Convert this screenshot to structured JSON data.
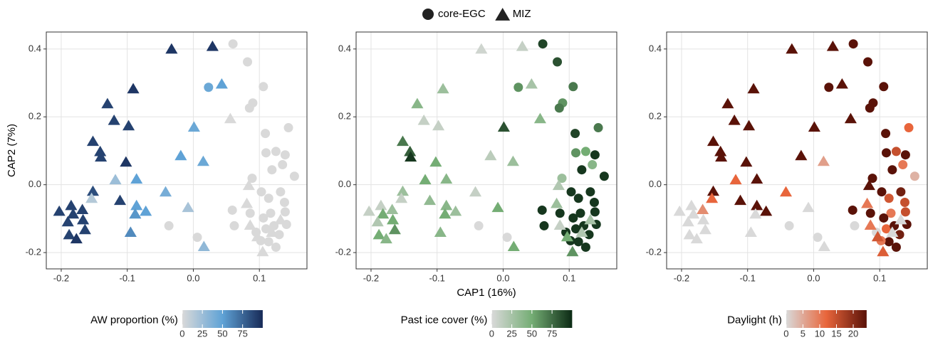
{
  "legend": {
    "note_series_from": 0
  },
  "chart_data": [
    {
      "type": "scatter",
      "y_label": "CAP2 (7%)",
      "xlim": [
        -0.2226,
        0.172
      ],
      "ylim": [
        -0.248,
        0.45
      ],
      "xticks": [
        -0.2,
        -0.1,
        {
          "value": 0,
          "label": "0.0"
        },
        0.1
      ],
      "yticks": [
        -0.2,
        {
          "value": 0,
          "label": "0.0"
        },
        0.2,
        0.4
      ],
      "grid": true,
      "colorbar": {
        "title": "AW proportion (%)",
        "lim": [
          0,
          100
        ],
        "ticks": [
          0,
          25,
          50,
          75
        ],
        "colors": [
          "#d9d9d9",
          "#5fa2d6",
          "#172a57"
        ]
      },
      "series": [
        {
          "name": "core-EGC",
          "marker": "circle",
          "x": [
            0.023,
            0.06,
            0.082,
            0.106,
            0.09,
            0.085,
            0.144,
            0.109,
            0.125,
            0.139,
            0.11,
            0.119,
            0.135,
            0.153,
            0.089,
            0.103,
            0.132,
            0.114,
            0.138,
            0.059,
            0.086,
            0.139,
            0.117,
            0.106,
            0.141,
            0.062,
            0.11,
            0.095,
            0.122,
            0.13,
            0.114,
            0.125,
            0.102,
            -0.037,
            0.006
          ],
          "y": [
            0.287,
            0.415,
            0.362,
            0.289,
            0.241,
            0.226,
            0.168,
            0.151,
            0.098,
            0.088,
            0.094,
            0.044,
            0.059,
            0.025,
            0.019,
            -0.021,
            -0.021,
            -0.04,
            -0.052,
            -0.075,
            -0.084,
            -0.08,
            -0.084,
            -0.098,
            -0.117,
            -0.121,
            -0.13,
            -0.14,
            -0.121,
            -0.147,
            -0.168,
            -0.184,
            -0.165,
            -0.121,
            -0.155
          ],
          "color_values": [
            45,
            0,
            0,
            0,
            0,
            0,
            0,
            0,
            0,
            0,
            0,
            0,
            0,
            0,
            0,
            0,
            0,
            0,
            0,
            0,
            0,
            0,
            0,
            0,
            0,
            0,
            0,
            0,
            0,
            0,
            0,
            0,
            0,
            0,
            0
          ]
        },
        {
          "name": "MIZ",
          "marker": "triangle",
          "x": [
            -0.033,
            0.029,
            -0.091,
            -0.13,
            -0.12,
            -0.098,
            -0.152,
            -0.141,
            -0.14,
            -0.102,
            -0.086,
            -0.118,
            -0.152,
            -0.154,
            -0.111,
            -0.203,
            -0.185,
            -0.168,
            -0.182,
            -0.167,
            -0.19,
            -0.164,
            -0.188,
            -0.177,
            -0.086,
            -0.072,
            -0.088,
            -0.095,
            0.043,
            0.001,
            -0.019,
            0.015,
            -0.042,
            -0.008,
            0.016,
            0.056,
            0.084,
            0.081,
            0.086,
            0.097,
            0.105,
            0.119,
            0.132
          ],
          "y": [
            0.398,
            0.406,
            0.281,
            0.237,
            0.188,
            0.172,
            0.126,
            0.096,
            0.08,
            0.065,
            0.015,
            0.013,
            -0.021,
            -0.042,
            -0.048,
            -0.08,
            -0.063,
            -0.075,
            -0.088,
            -0.105,
            -0.111,
            -0.134,
            -0.149,
            -0.161,
            -0.063,
            -0.08,
            -0.088,
            -0.142,
            0.295,
            0.168,
            0.084,
            0.067,
            -0.023,
            -0.069,
            -0.184,
            0.193,
            -0.004,
            -0.057,
            -0.121,
            -0.155,
            -0.199,
            -0.142,
            -0.105
          ],
          "color_values": [
            95,
            95,
            95,
            90,
            90,
            90,
            90,
            90,
            90,
            95,
            50,
            25,
            85,
            15,
            90,
            90,
            90,
            90,
            90,
            90,
            90,
            90,
            90,
            95,
            50,
            50,
            55,
            60,
            50,
            45,
            50,
            45,
            40,
            20,
            30,
            0,
            0,
            0,
            0,
            0,
            0,
            0,
            0
          ]
        }
      ]
    },
    {
      "type": "scatter",
      "x_label": "CAP1 (16%)",
      "xlim": [
        -0.2226,
        0.172
      ],
      "ylim": [
        -0.248,
        0.45
      ],
      "xticks": [
        -0.2,
        -0.1,
        {
          "value": 0,
          "label": "0.0"
        },
        0.1
      ],
      "yticks": [
        -0.2,
        {
          "value": 0,
          "label": "0.0"
        },
        0.2,
        0.4
      ],
      "grid": true,
      "colorbar": {
        "title": "Past ice cover (%)",
        "lim": [
          0,
          100
        ],
        "ticks": [
          0,
          25,
          50,
          75
        ],
        "colors": [
          "#d9d9d9",
          "#74ad74",
          "#0b2a14"
        ]
      },
      "series": [
        {
          "name": "core-EGC",
          "marker": "circle",
          "x": [
            0.023,
            0.06,
            0.082,
            0.106,
            0.09,
            0.085,
            0.144,
            0.109,
            0.125,
            0.139,
            0.11,
            0.119,
            0.135,
            0.153,
            0.089,
            0.103,
            0.132,
            0.114,
            0.138,
            0.059,
            0.086,
            0.139,
            0.117,
            0.106,
            0.141,
            0.062,
            0.11,
            0.095,
            0.122,
            0.13,
            0.114,
            0.125,
            0.102,
            -0.037,
            0.006
          ],
          "y": [
            0.287,
            0.415,
            0.362,
            0.289,
            0.241,
            0.226,
            0.168,
            0.151,
            0.098,
            0.088,
            0.094,
            0.044,
            0.059,
            0.025,
            0.019,
            -0.021,
            -0.021,
            -0.04,
            -0.052,
            -0.075,
            -0.084,
            -0.08,
            -0.084,
            -0.098,
            -0.117,
            -0.121,
            -0.13,
            -0.14,
            -0.121,
            -0.147,
            -0.168,
            -0.184,
            -0.165,
            -0.121,
            -0.155
          ],
          "color_values": [
            60,
            90,
            85,
            70,
            60,
            70,
            70,
            90,
            50,
            95,
            60,
            95,
            40,
            95,
            30,
            95,
            95,
            95,
            95,
            95,
            95,
            95,
            95,
            95,
            95,
            95,
            95,
            95,
            95,
            95,
            95,
            95,
            95,
            0,
            0
          ]
        },
        {
          "name": "MIZ",
          "marker": "triangle",
          "x": [
            -0.033,
            0.029,
            -0.091,
            -0.13,
            -0.12,
            -0.098,
            -0.152,
            -0.141,
            -0.14,
            -0.102,
            -0.086,
            -0.118,
            -0.152,
            -0.154,
            -0.111,
            -0.203,
            -0.185,
            -0.168,
            -0.182,
            -0.167,
            -0.19,
            -0.164,
            -0.188,
            -0.177,
            -0.086,
            -0.072,
            -0.088,
            -0.095,
            0.043,
            0.001,
            -0.019,
            0.015,
            -0.042,
            -0.008,
            0.016,
            0.056,
            0.084,
            0.081,
            0.086,
            0.097,
            0.105,
            0.119,
            0.132
          ],
          "y": [
            0.398,
            0.406,
            0.281,
            0.237,
            0.188,
            0.172,
            0.126,
            0.096,
            0.08,
            0.065,
            0.015,
            0.013,
            -0.021,
            -0.042,
            -0.048,
            -0.08,
            -0.063,
            -0.075,
            -0.088,
            -0.105,
            -0.111,
            -0.134,
            -0.149,
            -0.161,
            -0.063,
            -0.08,
            -0.088,
            -0.142,
            0.295,
            0.168,
            0.084,
            0.067,
            -0.023,
            -0.069,
            -0.184,
            0.193,
            -0.004,
            -0.057,
            -0.121,
            -0.155,
            -0.199,
            -0.142,
            -0.105
          ],
          "color_values": [
            5,
            10,
            30,
            40,
            10,
            10,
            70,
            80,
            95,
            50,
            40,
            50,
            30,
            10,
            35,
            10,
            10,
            30,
            50,
            50,
            20,
            60,
            50,
            40,
            40,
            30,
            50,
            40,
            25,
            85,
            15,
            30,
            10,
            50,
            50,
            40,
            20,
            30,
            10,
            50,
            60,
            20,
            25
          ]
        }
      ]
    },
    {
      "type": "scatter",
      "xlim": [
        -0.2226,
        0.172
      ],
      "ylim": [
        -0.248,
        0.45
      ],
      "xticks": [
        -0.2,
        -0.1,
        {
          "value": 0,
          "label": "0.0"
        },
        0.1
      ],
      "yticks": [
        -0.2,
        {
          "value": 0,
          "label": "0.0"
        },
        0.2,
        0.4
      ],
      "grid": true,
      "colorbar": {
        "title": "Daylight (h)",
        "lim": [
          0,
          24
        ],
        "ticks": [
          0,
          5,
          10,
          15,
          20
        ],
        "colors": [
          "#d9d9d9",
          "#e8653b",
          "#5a1208"
        ]
      },
      "series": [
        {
          "name": "core-EGC",
          "marker": "circle",
          "x": [
            0.023,
            0.06,
            0.082,
            0.106,
            0.09,
            0.085,
            0.144,
            0.109,
            0.125,
            0.139,
            0.11,
            0.119,
            0.135,
            0.153,
            0.089,
            0.103,
            0.132,
            0.114,
            0.138,
            0.059,
            0.086,
            0.139,
            0.117,
            0.106,
            0.141,
            0.062,
            0.11,
            0.095,
            0.122,
            0.13,
            0.114,
            0.125,
            0.102,
            -0.037,
            0.006
          ],
          "y": [
            0.287,
            0.415,
            0.362,
            0.289,
            0.241,
            0.226,
            0.168,
            0.151,
            0.098,
            0.088,
            0.094,
            0.044,
            0.059,
            0.025,
            0.019,
            -0.021,
            -0.021,
            -0.04,
            -0.052,
            -0.075,
            -0.084,
            -0.08,
            -0.084,
            -0.098,
            -0.117,
            -0.121,
            -0.13,
            -0.14,
            -0.121,
            -0.147,
            -0.168,
            -0.184,
            -0.165,
            -0.121,
            -0.155
          ],
          "color_values": [
            24,
            24,
            24,
            24,
            24,
            24,
            12,
            24,
            15,
            24,
            24,
            24,
            10,
            4,
            24,
            24,
            22,
            14,
            15,
            24,
            24,
            15,
            10,
            24,
            24,
            0,
            12,
            0,
            24,
            22,
            24,
            24,
            10,
            0,
            0
          ]
        },
        {
          "name": "MIZ",
          "marker": "triangle",
          "x": [
            -0.033,
            0.029,
            -0.091,
            -0.13,
            -0.12,
            -0.098,
            -0.152,
            -0.141,
            -0.14,
            -0.102,
            -0.086,
            -0.118,
            -0.152,
            -0.154,
            -0.111,
            -0.203,
            -0.185,
            -0.168,
            -0.182,
            -0.167,
            -0.19,
            -0.164,
            -0.188,
            -0.177,
            -0.086,
            -0.072,
            -0.088,
            -0.095,
            0.043,
            0.001,
            -0.019,
            0.015,
            -0.042,
            -0.008,
            0.016,
            0.056,
            0.084,
            0.081,
            0.086,
            0.097,
            0.105,
            0.119,
            0.132
          ],
          "y": [
            0.398,
            0.406,
            0.281,
            0.237,
            0.188,
            0.172,
            0.126,
            0.096,
            0.08,
            0.065,
            0.015,
            0.013,
            -0.021,
            -0.042,
            -0.048,
            -0.08,
            -0.063,
            -0.075,
            -0.088,
            -0.105,
            -0.111,
            -0.134,
            -0.149,
            -0.161,
            -0.063,
            -0.08,
            -0.088,
            -0.142,
            0.295,
            0.168,
            0.084,
            0.067,
            -0.023,
            -0.069,
            -0.184,
            0.193,
            -0.004,
            -0.057,
            -0.121,
            -0.155,
            -0.199,
            -0.142,
            -0.105
          ],
          "color_values": [
            24,
            24,
            24,
            24,
            24,
            24,
            24,
            24,
            24,
            24,
            24,
            12,
            24,
            12,
            24,
            0,
            0,
            8,
            0,
            0,
            0,
            0,
            0,
            0,
            24,
            24,
            0,
            0,
            24,
            24,
            24,
            6,
            12,
            0,
            0,
            24,
            24,
            10,
            10,
            14,
            13,
            0,
            0
          ]
        }
      ]
    }
  ]
}
